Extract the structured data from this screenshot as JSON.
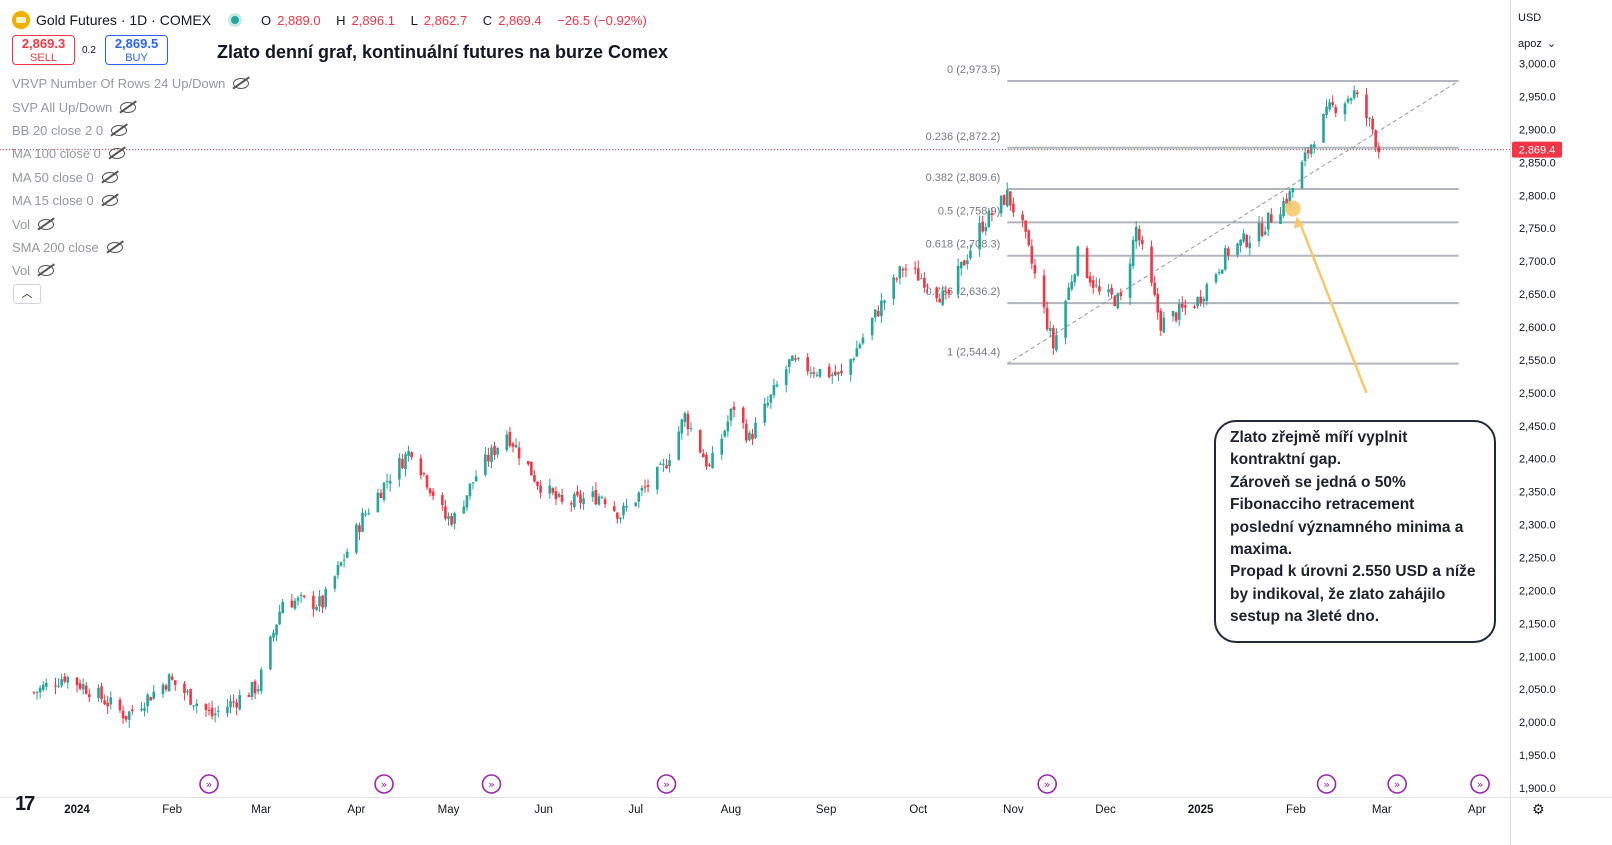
{
  "header": {
    "symbol": "Gold Futures · 1D · COMEX",
    "ohlc": {
      "o_label": "O",
      "o": "2,889.0",
      "h_label": "H",
      "h": "2,896.1",
      "l_label": "L",
      "l": "2,862.7",
      "c_label": "C",
      "c": "2,869.4",
      "change": "−26.5 (−0.92%)"
    }
  },
  "trade": {
    "sell_price": "2,869.3",
    "sell_label": "SELL",
    "spread": "0.2",
    "buy_price": "2,869.5",
    "buy_label": "BUY"
  },
  "chart_title": "Zlato denní graf, kontinuální futures na burze Comex",
  "indicators": [
    "VRVP Number Of Rows 24 Up/Down",
    "SVP All Up/Down",
    "BB 20 close 2 0",
    "MA 100 close 0",
    "MA 50 close 0",
    "MA 15 close 0",
    "Vol",
    "SMA 200 close",
    "Vol"
  ],
  "collapse_icon": "chevron-up-icon",
  "annotation": [
    "Zlato zřejmě míří vyplnit",
    "kontraktní gap.",
    "Zároveň se jedná o 50%",
    "Fibonacciho retracement",
    "poslední významného minima a",
    "maxima.",
    "Propad k úrovni 2.550  USD a níže",
    "by indikoval, že zlato zahájilo",
    "sestup na 3leté dno."
  ],
  "price_scale": {
    "currency": "USD",
    "mode": "apoz"
  },
  "colors": {
    "up": "#26a69a",
    "down": "#f23645",
    "fib": "#b2b5be",
    "arrow": "#f7c96b",
    "price_line": "#f23645"
  },
  "chart_data": {
    "type": "candlestick",
    "y_range": [
      1890,
      3010
    ],
    "y_ticks": [
      1900,
      1950,
      2000,
      2050,
      2100,
      2150,
      2200,
      2250,
      2300,
      2350,
      2400,
      2450,
      2500,
      2550,
      2600,
      2650,
      2700,
      2750,
      2800,
      2850,
      2900,
      2950,
      3000
    ],
    "y_tick_labels": [
      "1,900.0",
      "1,950.0",
      "2,000.0",
      "2,050.0",
      "2,100.0",
      "2,150.0",
      "2,200.0",
      "2,250.0",
      "2,300.0",
      "2,350.0",
      "2,400.0",
      "2,450.0",
      "2,500.0",
      "2,550.0",
      "2,600.0",
      "2,650.0",
      "2,700.0",
      "2,750.0",
      "2,800.0",
      "2,850.0",
      "2,900.0",
      "2,950.0",
      "3,000.0"
    ],
    "x_labels": [
      {
        "label": "2024",
        "date": "2024-01-01",
        "bold": true
      },
      {
        "label": "Feb",
        "date": "2024-02-01"
      },
      {
        "label": "Mar",
        "date": "2024-03-01"
      },
      {
        "label": "Apr",
        "date": "2024-04-01"
      },
      {
        "label": "May",
        "date": "2024-05-01"
      },
      {
        "label": "Jun",
        "date": "2024-06-01"
      },
      {
        "label": "Jul",
        "date": "2024-07-01"
      },
      {
        "label": "Aug",
        "date": "2024-08-01"
      },
      {
        "label": "Sep",
        "date": "2024-09-01"
      },
      {
        "label": "Oct",
        "date": "2024-10-01"
      },
      {
        "label": "Nov",
        "date": "2024-11-01"
      },
      {
        "label": "Dec",
        "date": "2024-12-01"
      },
      {
        "label": "2025",
        "date": "2025-01-01",
        "bold": true
      },
      {
        "label": "Feb",
        "date": "2025-02-01"
      },
      {
        "label": "Mar",
        "date": "2025-03-01"
      },
      {
        "label": "Apr",
        "date": "2025-04-01"
      }
    ],
    "last_price": 2869.4,
    "last_price_label": "2,869.4",
    "closes_path": [
      {
        "date": "2023-12-18",
        "close": 2045
      },
      {
        "date": "2023-12-28",
        "close": 2070
      },
      {
        "date": "2024-01-05",
        "close": 2050
      },
      {
        "date": "2024-01-17",
        "close": 2010
      },
      {
        "date": "2024-01-31",
        "close": 2065
      },
      {
        "date": "2024-02-14",
        "close": 2010
      },
      {
        "date": "2024-02-29",
        "close": 2055
      },
      {
        "date": "2024-03-08",
        "close": 2185
      },
      {
        "date": "2024-03-21",
        "close": 2180
      },
      {
        "date": "2024-04-03",
        "close": 2310
      },
      {
        "date": "2024-04-12",
        "close": 2375
      },
      {
        "date": "2024-04-19",
        "close": 2415
      },
      {
        "date": "2024-04-30",
        "close": 2310
      },
      {
        "date": "2024-05-03",
        "close": 2310
      },
      {
        "date": "2024-05-10",
        "close": 2375
      },
      {
        "date": "2024-05-20",
        "close": 2440
      },
      {
        "date": "2024-05-30",
        "close": 2365
      },
      {
        "date": "2024-06-07",
        "close": 2330
      },
      {
        "date": "2024-06-20",
        "close": 2345
      },
      {
        "date": "2024-06-26",
        "close": 2315
      },
      {
        "date": "2024-07-10",
        "close": 2385
      },
      {
        "date": "2024-07-17",
        "close": 2465
      },
      {
        "date": "2024-07-25",
        "close": 2385
      },
      {
        "date": "2024-08-02",
        "close": 2480
      },
      {
        "date": "2024-08-07",
        "close": 2430
      },
      {
        "date": "2024-08-20",
        "close": 2545
      },
      {
        "date": "2024-09-06",
        "close": 2525
      },
      {
        "date": "2024-09-16",
        "close": 2610
      },
      {
        "date": "2024-09-26",
        "close": 2690
      },
      {
        "date": "2024-10-04",
        "close": 2670
      },
      {
        "date": "2024-10-10",
        "close": 2640
      },
      {
        "date": "2024-10-21",
        "close": 2750
      },
      {
        "date": "2024-10-30",
        "close": 2800
      },
      {
        "date": "2024-11-04",
        "close": 2750
      },
      {
        "date": "2024-11-14",
        "close": 2570
      },
      {
        "date": "2024-11-22",
        "close": 2710
      },
      {
        "date": "2024-11-29",
        "close": 2650
      },
      {
        "date": "2024-12-06",
        "close": 2640
      },
      {
        "date": "2024-12-11",
        "close": 2750
      },
      {
        "date": "2024-12-19",
        "close": 2605
      },
      {
        "date": "2024-12-31",
        "close": 2640
      },
      {
        "date": "2025-01-10",
        "close": 2715
      },
      {
        "date": "2025-01-20",
        "close": 2745
      },
      {
        "date": "2025-01-30",
        "close": 2800
      },
      {
        "date": "2025-02-07",
        "close": 2890
      },
      {
        "date": "2025-02-12",
        "close": 2930
      },
      {
        "date": "2025-02-20",
        "close": 2955
      },
      {
        "date": "2025-02-26",
        "close": 2900
      },
      {
        "date": "2025-02-28",
        "close": 2869
      }
    ],
    "fib_levels": [
      {
        "ratio": 0,
        "price": 2973.5,
        "label": "0 (2,973.5)"
      },
      {
        "ratio": 0.236,
        "price": 2872.2,
        "label": "0.236 (2,872.2)"
      },
      {
        "ratio": 0.382,
        "price": 2809.6,
        "label": "0.382 (2,809.6)"
      },
      {
        "ratio": 0.5,
        "price": 2758.9,
        "label": "0.5 (2,758.9)"
      },
      {
        "ratio": 0.618,
        "price": 2708.3,
        "label": "0.618 (2,708.3)"
      },
      {
        "ratio": 0.786,
        "price": 2636.2,
        "label": "0.786 (2,636.2)"
      },
      {
        "ratio": 1,
        "price": 2544.4,
        "label": "1 (2,544.4)"
      }
    ],
    "fib_range": {
      "start": "2024-10-30",
      "end": "2025-03-26",
      "trend_from": {
        "date": "2024-10-30",
        "price": 2544.4
      },
      "trend_to": {
        "date": "2025-03-26",
        "price": 2973.5
      }
    },
    "marker": {
      "date": "2025-01-31",
      "price": 2780
    },
    "arrow_to": {
      "date": "2025-02-24",
      "price": 2500
    },
    "event_icons": [
      "2024-02-13",
      "2024-04-10",
      "2024-05-15",
      "2024-07-11",
      "2024-11-12",
      "2025-02-11",
      "2025-03-06",
      "2025-04-02"
    ]
  }
}
